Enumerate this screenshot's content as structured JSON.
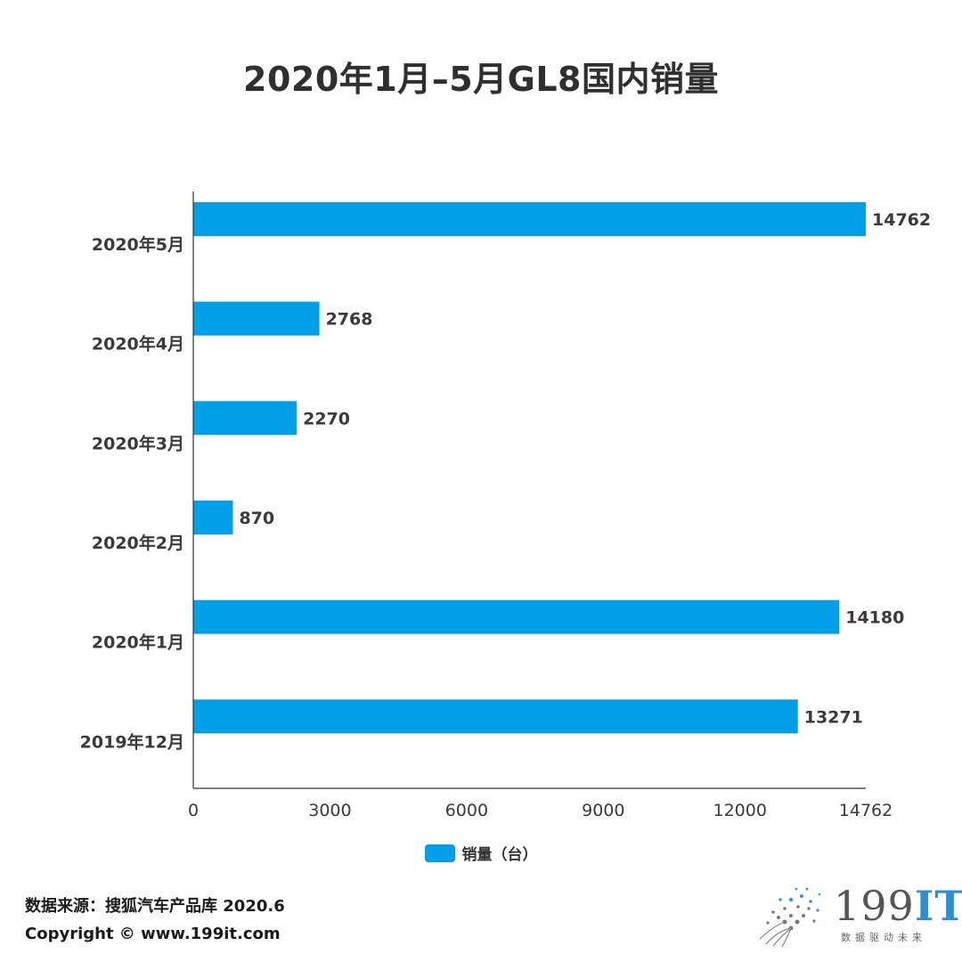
{
  "title": "2020年1月–5月GL8国内销量",
  "chart_data": {
    "type": "bar",
    "orientation": "horizontal",
    "title": "2020年1月–5月GL8国内销量",
    "categories": [
      "2020年5月",
      "2020年4月",
      "2020年3月",
      "2020年2月",
      "2020年1月",
      "2019年12月"
    ],
    "series": [
      {
        "name": "销量（台）",
        "values": [
          14762,
          2768,
          2270,
          870,
          14180,
          13271
        ],
        "color": "#009fe8"
      }
    ],
    "x_ticks": [
      "0",
      "3000",
      "6000",
      "9000",
      "12000",
      "14762"
    ],
    "xlim": [
      0,
      14762
    ],
    "grid": false,
    "legend_position": "bottom"
  },
  "legend": {
    "label": "销量（台）"
  },
  "footer": {
    "source": "数据来源：搜狐汽车产品库 2020.6",
    "copyright": "Copyright ©   www.199it.com"
  },
  "logo": {
    "main": "199",
    "accent": "IT",
    "tagline": "数据驱动未来"
  }
}
